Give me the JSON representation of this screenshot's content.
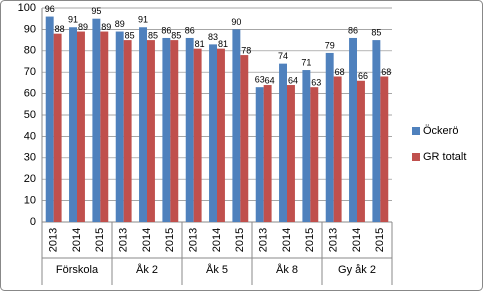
{
  "chart_data": {
    "type": "bar",
    "categories": [
      "2013",
      "2014",
      "2015",
      "2013",
      "2014",
      "2015",
      "2013",
      "2014",
      "2015",
      "2013",
      "2014",
      "2015",
      "2013",
      "2014",
      "2015"
    ],
    "groups": [
      "Förskola",
      "Åk 2",
      "Åk 5",
      "Åk 8",
      "Gy åk 2"
    ],
    "series": [
      {
        "name": "Öckerö",
        "color": "#4f81bd",
        "values": [
          96,
          91,
          95,
          89,
          91,
          86,
          86,
          83,
          90,
          63,
          74,
          71,
          79,
          86,
          85
        ]
      },
      {
        "name": "GR totalt",
        "color": "#c0504d",
        "values": [
          88,
          89,
          89,
          85,
          85,
          85,
          81,
          81,
          78,
          64,
          64,
          63,
          68,
          66,
          68
        ]
      }
    ],
    "ylim": [
      0,
      100
    ],
    "yticks": [
      0,
      10,
      20,
      30,
      40,
      50,
      60,
      70,
      80,
      90,
      100
    ],
    "grid": true,
    "legend": "right"
  }
}
